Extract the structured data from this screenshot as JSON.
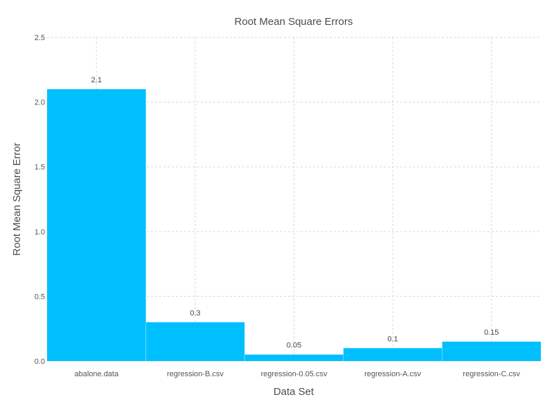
{
  "chart_data": {
    "type": "bar",
    "title": "Root Mean Square Errors",
    "xlabel": "Data Set",
    "ylabel": "Root Mean Square Error",
    "categories": [
      "abalone.data",
      "regression-B.csv",
      "regression-0.05.csv",
      "regression-A.csv",
      "regression-C.csv"
    ],
    "values": [
      2.1,
      0.3,
      0.05,
      0.1,
      0.15
    ],
    "value_labels": [
      "2.1",
      "0.3",
      "0.05",
      "0.1",
      "0.15"
    ],
    "ylim": [
      0,
      2.5
    ],
    "yticks": [
      0.0,
      0.5,
      1.0,
      1.5,
      2.0,
      2.5
    ],
    "ytick_labels": [
      "0.0",
      "0.5",
      "1.0",
      "1.5",
      "2.0",
      "2.5"
    ],
    "grid": true,
    "legend": "none",
    "bar_color": "#00bfff"
  }
}
